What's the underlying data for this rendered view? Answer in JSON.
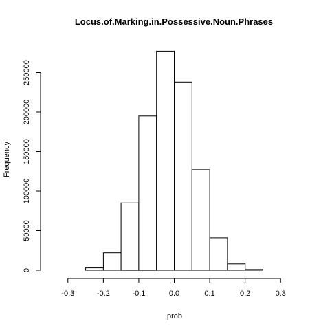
{
  "chart_data": {
    "type": "bar",
    "title": "Locus.of.Marking.in.Possessive.Noun.Phrases",
    "xlabel": "prob",
    "ylabel": "Frequency",
    "bins": [
      {
        "x0": -0.25,
        "x1": -0.2,
        "value": 3000
      },
      {
        "x0": -0.2,
        "x1": -0.15,
        "value": 22000
      },
      {
        "x0": -0.15,
        "x1": -0.1,
        "value": 85000
      },
      {
        "x0": -0.1,
        "x1": -0.05,
        "value": 195000
      },
      {
        "x0": -0.05,
        "x1": 0.0,
        "value": 277000
      },
      {
        "x0": 0.0,
        "x1": 0.05,
        "value": 238000
      },
      {
        "x0": 0.05,
        "x1": 0.1,
        "value": 127000
      },
      {
        "x0": 0.1,
        "x1": 0.15,
        "value": 41000
      },
      {
        "x0": 0.15,
        "x1": 0.2,
        "value": 8000
      },
      {
        "x0": 0.2,
        "x1": 0.25,
        "value": 1000
      }
    ],
    "xlim": [
      -0.35,
      0.35
    ],
    "ylim": [
      0,
      280000
    ],
    "xticks": [
      -0.3,
      -0.2,
      -0.1,
      0.0,
      0.1,
      0.2,
      0.3
    ],
    "xtick_labels": [
      "-0.3",
      "-0.2",
      "-0.1",
      "0.0",
      "0.1",
      "0.2",
      "0.3"
    ],
    "yticks": [
      0,
      50000,
      100000,
      150000,
      200000,
      250000
    ],
    "ytick_labels": [
      "0",
      "50000",
      "100000",
      "150000",
      "200000",
      "250000"
    ],
    "grid": false,
    "legend": "none"
  }
}
